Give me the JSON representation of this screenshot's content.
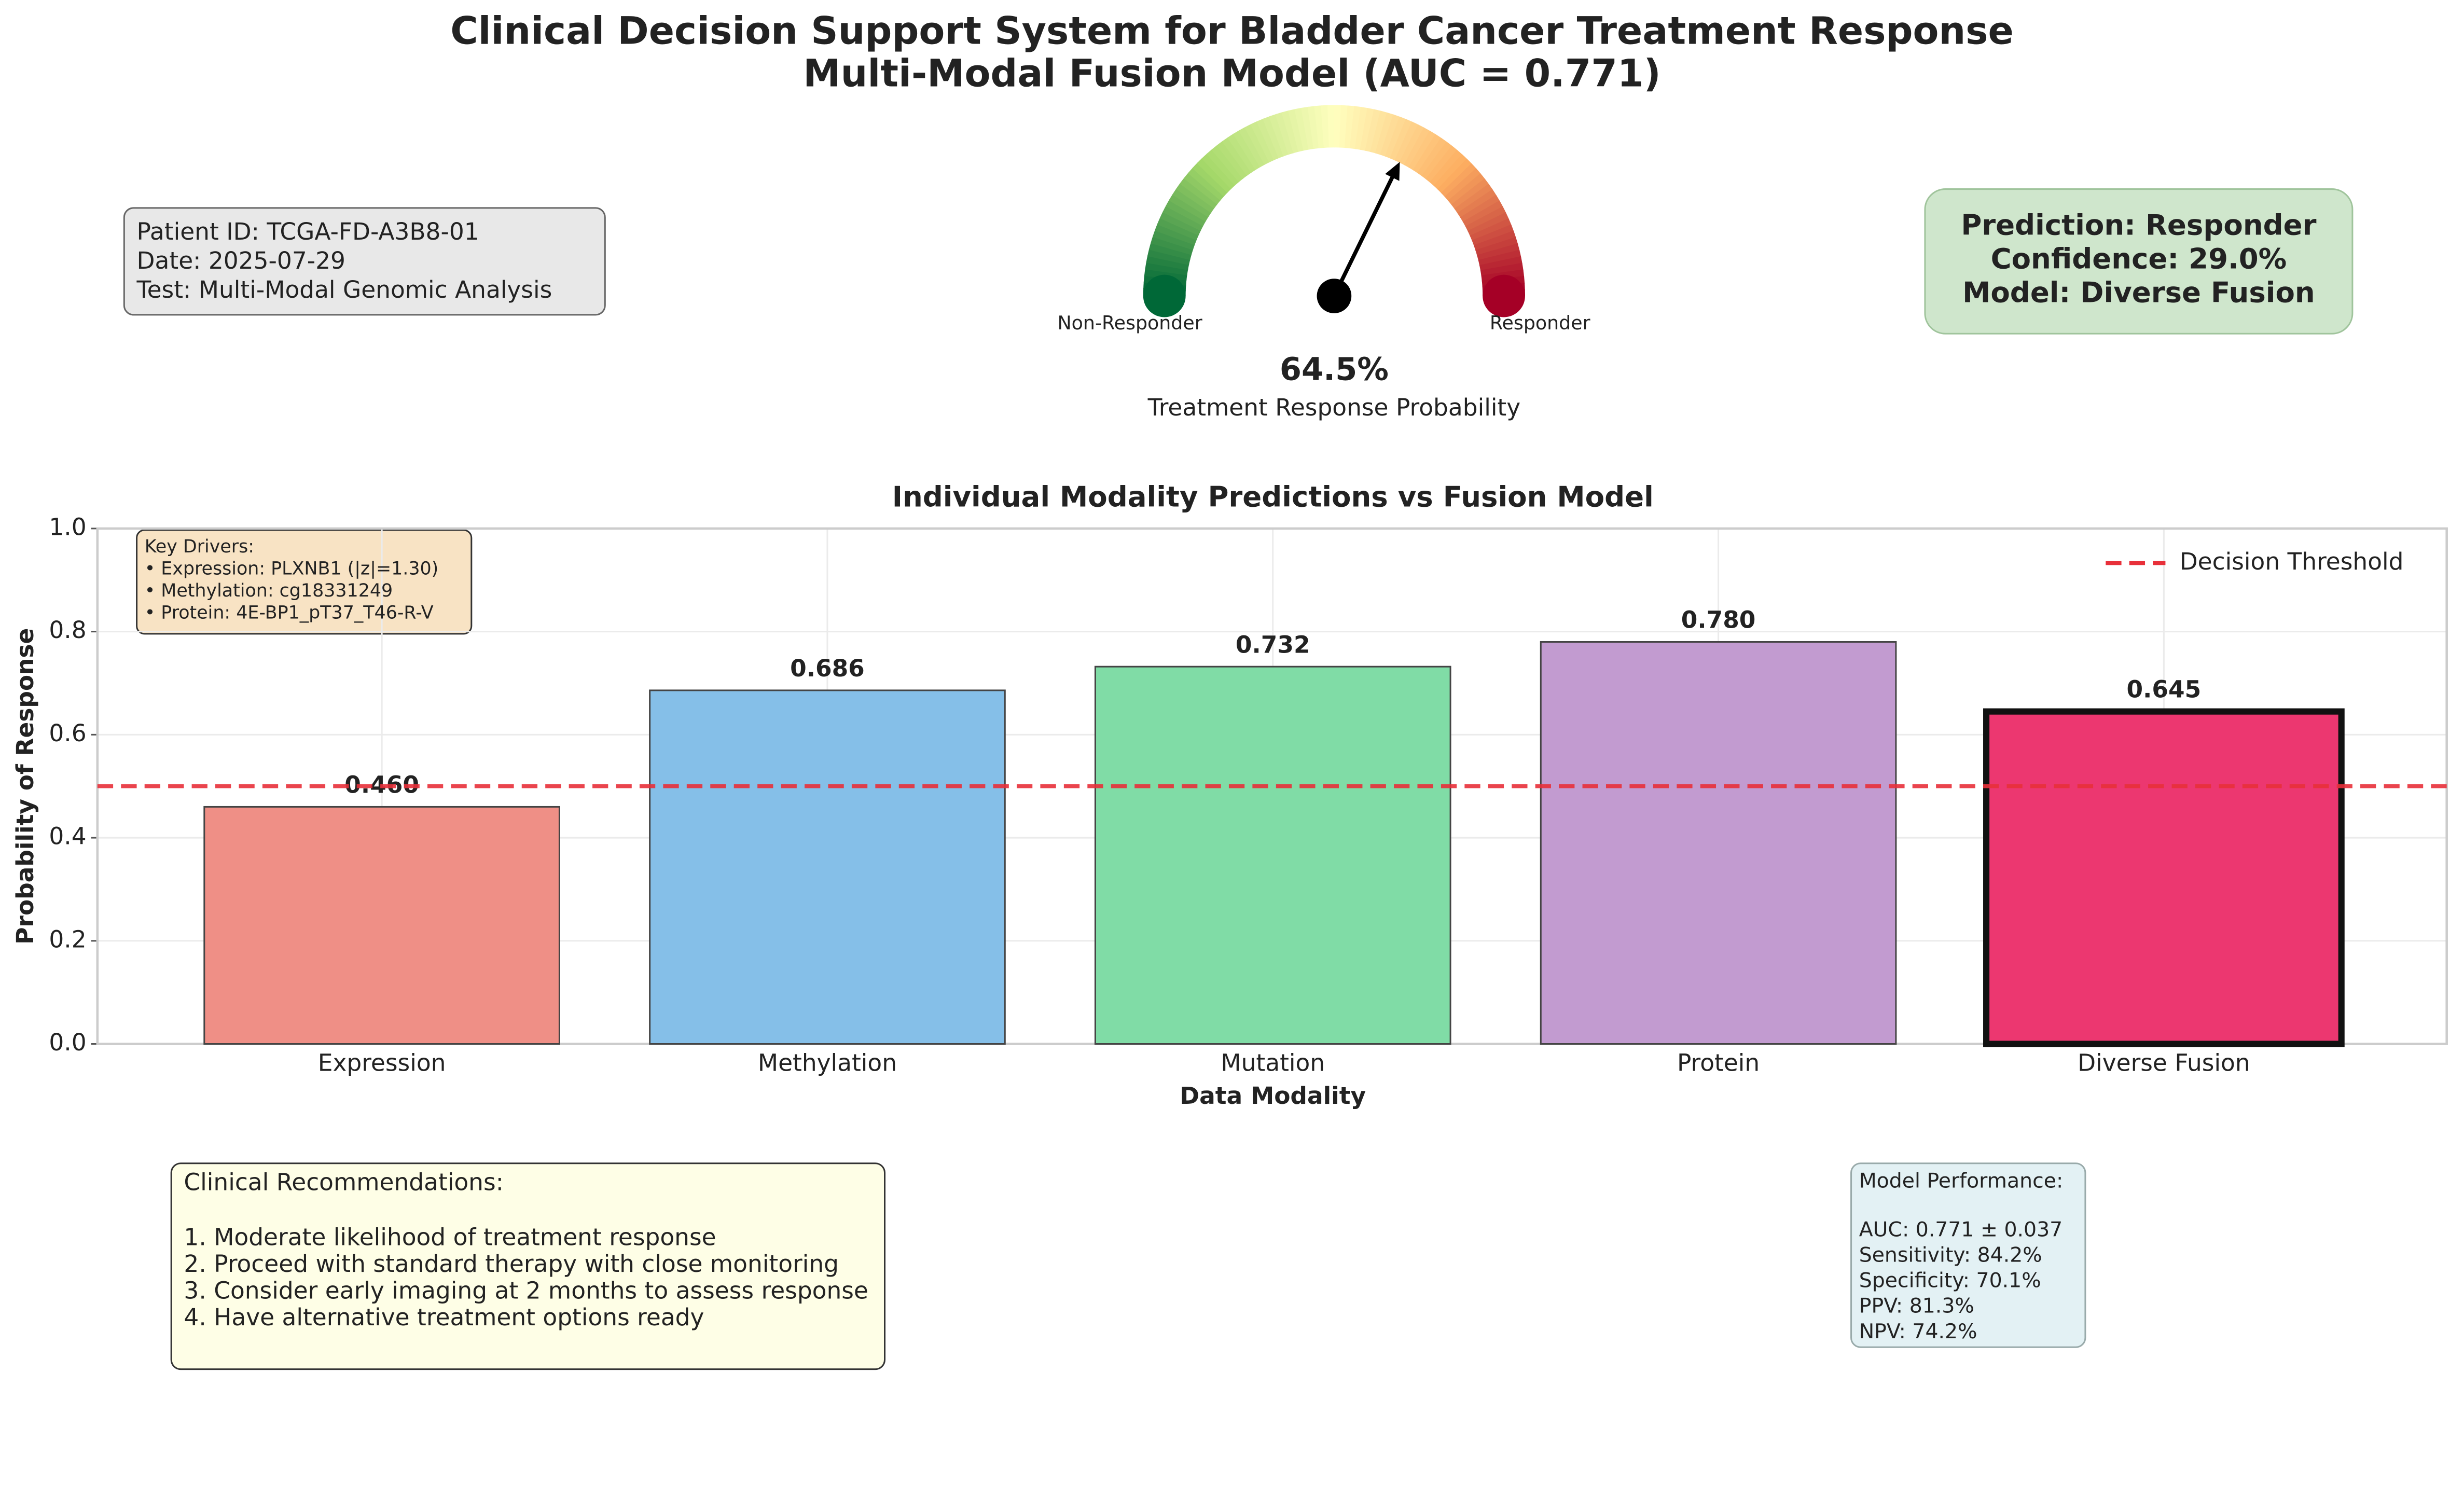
{
  "header": {
    "title": "Clinical Decision Support System for Bladder Cancer Treatment Response",
    "subtitle": "Multi-Modal Fusion Model (AUC = 0.771)"
  },
  "patient_info": [
    "Patient ID: TCGA-FD-A3B8-01",
    "Date: 2025-07-29",
    "Test: Multi-Modal Genomic Analysis"
  ],
  "prediction": [
    "Prediction: Responder",
    "Confidence: 29.0%",
    "Model: Diverse Fusion"
  ],
  "chart_data": [
    {
      "type": "gauge",
      "value": 64.5,
      "value_label": "64.5%",
      "ylim": [
        0,
        100
      ],
      "left_label": "Non-Responder",
      "right_label": "Responder",
      "caption": "Treatment Response Probability",
      "colors": [
        "#006837",
        "#a6d96a",
        "#ffffbf",
        "#fdae61",
        "#a50026"
      ]
    },
    {
      "type": "bar",
      "title": "Individual Modality Predictions vs Fusion Model",
      "xlabel": "Data Modality",
      "ylabel": "Probability of Response",
      "categories": [
        "Expression",
        "Methylation",
        "Mutation",
        "Protein",
        "Diverse Fusion"
      ],
      "values": [
        0.46,
        0.686,
        0.732,
        0.78,
        0.645
      ],
      "value_labels": [
        "0.460",
        "0.686",
        "0.732",
        "0.780",
        "0.645"
      ],
      "colors": [
        "#ef8f86",
        "#85bfe8",
        "#80dca6",
        "#c29bd0",
        "#ec3770"
      ],
      "highlight_index": 4,
      "ylim": [
        0,
        1
      ],
      "yticks": [
        {
          "value": 0,
          "label": "0.0"
        },
        {
          "value": 0.2,
          "label": "0.2"
        },
        {
          "value": 0.4,
          "label": "0.4"
        },
        {
          "value": 0.6,
          "label": "0.6"
        },
        {
          "value": 0.8,
          "label": "0.8"
        },
        {
          "value": 1,
          "label": "1.0"
        }
      ],
      "grid": true,
      "threshold": 0.5,
      "threshold_label": "Decision Threshold",
      "threshold_color": "#e8303a",
      "legend": "upper right",
      "annotation": [
        "Key Drivers:",
        "• Expression: PLXNB1 (|z|=1.30)",
        "• Methylation: cg18331249",
        "• Protein: 4E-BP1_pT37_T46-R-V"
      ]
    }
  ],
  "recommendations": {
    "title": "Clinical Recommendations:",
    "items": [
      "1. Moderate likelihood of treatment response",
      "2. Proceed with standard therapy with close monitoring",
      "3. Consider early imaging at 2 months to assess response",
      "4. Have alternative treatment options ready"
    ]
  },
  "performance": {
    "title": "Model Performance:",
    "items": [
      "AUC: 0.771 ± 0.037",
      "Sensitivity: 84.2%",
      "Specificity: 70.1%",
      "PPV: 81.3%",
      "NPV: 74.2%"
    ]
  }
}
